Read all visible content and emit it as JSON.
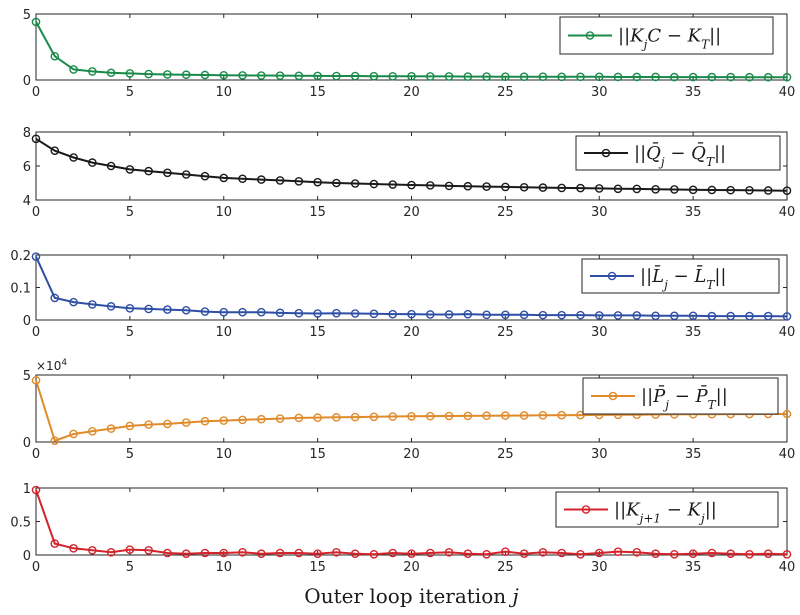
{
  "chart_data": [
    {
      "type": "line",
      "legend": "||K_jC − K_T||",
      "legend_location": "top-right",
      "color": "#1a8a4a",
      "ylim": [
        0,
        5
      ],
      "yticks": [
        0,
        5
      ],
      "xlim": [
        0,
        40
      ],
      "xticks": [
        0,
        5,
        10,
        15,
        20,
        25,
        30,
        35,
        40
      ],
      "x": [
        0,
        1,
        2,
        3,
        4,
        5,
        6,
        7,
        8,
        9,
        10,
        11,
        12,
        13,
        14,
        15,
        16,
        17,
        18,
        19,
        20,
        21,
        22,
        23,
        24,
        25,
        26,
        27,
        28,
        29,
        30,
        31,
        32,
        33,
        34,
        35,
        36,
        37,
        38,
        39,
        40
      ],
      "values": [
        4.4,
        1.8,
        0.8,
        0.65,
        0.55,
        0.5,
        0.45,
        0.42,
        0.4,
        0.38,
        0.36,
        0.35,
        0.34,
        0.33,
        0.32,
        0.31,
        0.3,
        0.3,
        0.29,
        0.28,
        0.28,
        0.27,
        0.27,
        0.26,
        0.26,
        0.25,
        0.25,
        0.25,
        0.24,
        0.24,
        0.24,
        0.23,
        0.23,
        0.23,
        0.22,
        0.22,
        0.22,
        0.22,
        0.21,
        0.21,
        0.21
      ]
    },
    {
      "type": "line",
      "legend": "||Q̄_j − Q̄_T||",
      "legend_location": "top-right",
      "color": "#1a1a1a",
      "ylim": [
        4,
        8
      ],
      "yticks": [
        4,
        6,
        8
      ],
      "xlim": [
        0,
        40
      ],
      "xticks": [
        0,
        5,
        10,
        15,
        20,
        25,
        30,
        35,
        40
      ],
      "x": [
        0,
        1,
        2,
        3,
        4,
        5,
        6,
        7,
        8,
        9,
        10,
        11,
        12,
        13,
        14,
        15,
        16,
        17,
        18,
        19,
        20,
        21,
        22,
        23,
        24,
        25,
        26,
        27,
        28,
        29,
        30,
        31,
        32,
        33,
        34,
        35,
        36,
        37,
        38,
        39,
        40
      ],
      "values": [
        7.6,
        6.9,
        6.5,
        6.2,
        6.0,
        5.8,
        5.7,
        5.6,
        5.5,
        5.4,
        5.3,
        5.25,
        5.2,
        5.15,
        5.1,
        5.05,
        5.0,
        4.97,
        4.94,
        4.91,
        4.88,
        4.86,
        4.83,
        4.81,
        4.79,
        4.77,
        4.75,
        4.73,
        4.71,
        4.7,
        4.68,
        4.66,
        4.65,
        4.63,
        4.62,
        4.6,
        4.59,
        4.58,
        4.57,
        4.56,
        4.55
      ]
    },
    {
      "type": "line",
      "legend": "||L̄_j − L̄_T||",
      "legend_location": "top-right",
      "color": "#2f4fa5",
      "ylim": [
        0,
        0.2
      ],
      "yticks": [
        0,
        0.1,
        0.2
      ],
      "xlim": [
        0,
        40
      ],
      "xticks": [
        0,
        5,
        10,
        15,
        20,
        25,
        30,
        35,
        40
      ],
      "x": [
        0,
        1,
        2,
        3,
        4,
        5,
        6,
        7,
        8,
        9,
        10,
        11,
        12,
        13,
        14,
        15,
        16,
        17,
        18,
        19,
        20,
        21,
        22,
        23,
        24,
        25,
        26,
        27,
        28,
        29,
        30,
        31,
        32,
        33,
        34,
        35,
        36,
        37,
        38,
        39,
        40
      ],
      "values": [
        0.195,
        0.068,
        0.055,
        0.048,
        0.042,
        0.036,
        0.034,
        0.032,
        0.03,
        0.026,
        0.024,
        0.024,
        0.024,
        0.022,
        0.021,
        0.02,
        0.021,
        0.02,
        0.019,
        0.018,
        0.018,
        0.017,
        0.017,
        0.018,
        0.016,
        0.016,
        0.016,
        0.015,
        0.015,
        0.015,
        0.014,
        0.014,
        0.014,
        0.013,
        0.013,
        0.013,
        0.012,
        0.012,
        0.012,
        0.012,
        0.011
      ]
    },
    {
      "type": "line",
      "legend": "||P̄_j − P̄_T||",
      "legend_location": "top-right",
      "color": "#e08a2a",
      "ylim": [
        0,
        50000
      ],
      "yticks": [
        0,
        5
      ],
      "multiplier": "×10",
      "multiplier_exp": "4",
      "xlim": [
        0,
        40
      ],
      "xticks": [
        0,
        5,
        10,
        15,
        20,
        25,
        30,
        35,
        40
      ],
      "x": [
        0,
        1,
        2,
        3,
        4,
        5,
        6,
        7,
        8,
        9,
        10,
        11,
        12,
        13,
        14,
        15,
        16,
        17,
        18,
        19,
        20,
        21,
        22,
        23,
        24,
        25,
        26,
        27,
        28,
        29,
        30,
        31,
        32,
        33,
        34,
        35,
        36,
        37,
        38,
        39,
        40
      ],
      "values": [
        46000,
        1000,
        6000,
        8000,
        10000,
        12000,
        13000,
        13500,
        14500,
        15500,
        16000,
        16500,
        17000,
        17500,
        18000,
        18200,
        18400,
        18600,
        18800,
        19000,
        19200,
        19300,
        19400,
        19500,
        19600,
        19700,
        19800,
        19900,
        20000,
        20100,
        20200,
        20300,
        20400,
        20500,
        20600,
        20700,
        20700,
        20800,
        20800,
        20900,
        20900
      ]
    },
    {
      "type": "line",
      "legend": "||K_{j+1} − K_j||",
      "legend_location": "top-right",
      "color": "#d4232b",
      "ylim": [
        0,
        1
      ],
      "yticks": [
        0,
        0.5,
        1
      ],
      "xlim": [
        0,
        40
      ],
      "xticks": [
        0,
        5,
        10,
        15,
        20,
        25,
        30,
        35,
        40
      ],
      "xlabel": "Outer loop iteration j",
      "x": [
        0,
        1,
        2,
        3,
        4,
        5,
        6,
        7,
        8,
        9,
        10,
        11,
        12,
        13,
        14,
        15,
        16,
        17,
        18,
        19,
        20,
        21,
        22,
        23,
        24,
        25,
        26,
        27,
        28,
        29,
        30,
        31,
        32,
        33,
        34,
        35,
        36,
        37,
        38,
        39,
        40
      ],
      "values": [
        0.97,
        0.17,
        0.1,
        0.07,
        0.04,
        0.08,
        0.07,
        0.03,
        0.02,
        0.03,
        0.03,
        0.04,
        0.02,
        0.03,
        0.03,
        0.02,
        0.04,
        0.02,
        0.01,
        0.03,
        0.02,
        0.03,
        0.04,
        0.02,
        0.01,
        0.05,
        0.02,
        0.04,
        0.03,
        0.01,
        0.03,
        0.05,
        0.04,
        0.02,
        0.01,
        0.02,
        0.03,
        0.02,
        0.01,
        0.02,
        0.01
      ]
    }
  ]
}
